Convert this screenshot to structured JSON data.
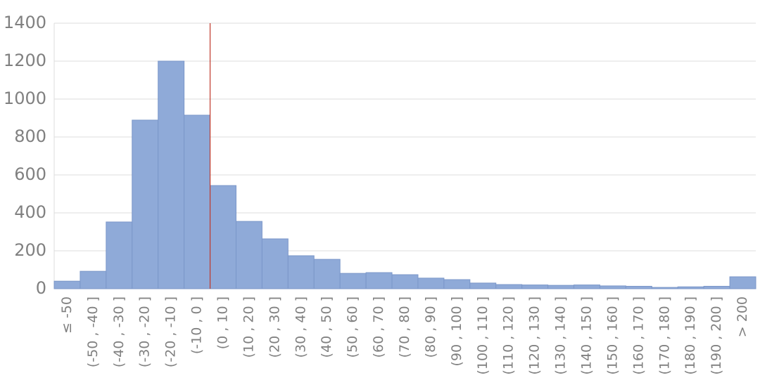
{
  "chart_data": {
    "type": "bar",
    "categories": [
      "≤ -50",
      "(-50 , -40 ]",
      "(-40 , -30 ]",
      "(-30 , -20 ]",
      "(-20 , -10 ]",
      "(-10 , 0 ]",
      "(0 , 10 ]",
      "(10 , 20 ]",
      "(20 , 30 ]",
      "(30 , 40 ]",
      "(40 , 50 ]",
      "(50 , 60 ]",
      "(60 , 70 ]",
      "(70 , 80 ]",
      "(80 , 90 ]",
      "(90 , 100 ]",
      "(100 , 110 ]",
      "(110 , 120 ]",
      "(120 , 130 ]",
      "(130 , 140 ]",
      "(140 , 150 ]",
      "(150 , 160 ]",
      "(160 , 170 ]",
      "(170 , 180 ]",
      "(180 , 190 ]",
      "(190 , 200 ]",
      "> 200"
    ],
    "values": [
      40,
      92,
      352,
      889,
      1200,
      915,
      544,
      355,
      263,
      174,
      155,
      81,
      85,
      74,
      56,
      48,
      30,
      22,
      20,
      18,
      20,
      15,
      13,
      7,
      10,
      13,
      63
    ],
    "color": "#8faad8",
    "ylim": [
      0,
      1400
    ],
    "yticks": [
      0,
      200,
      400,
      600,
      800,
      1000,
      1200,
      1400
    ],
    "grid": true
  }
}
